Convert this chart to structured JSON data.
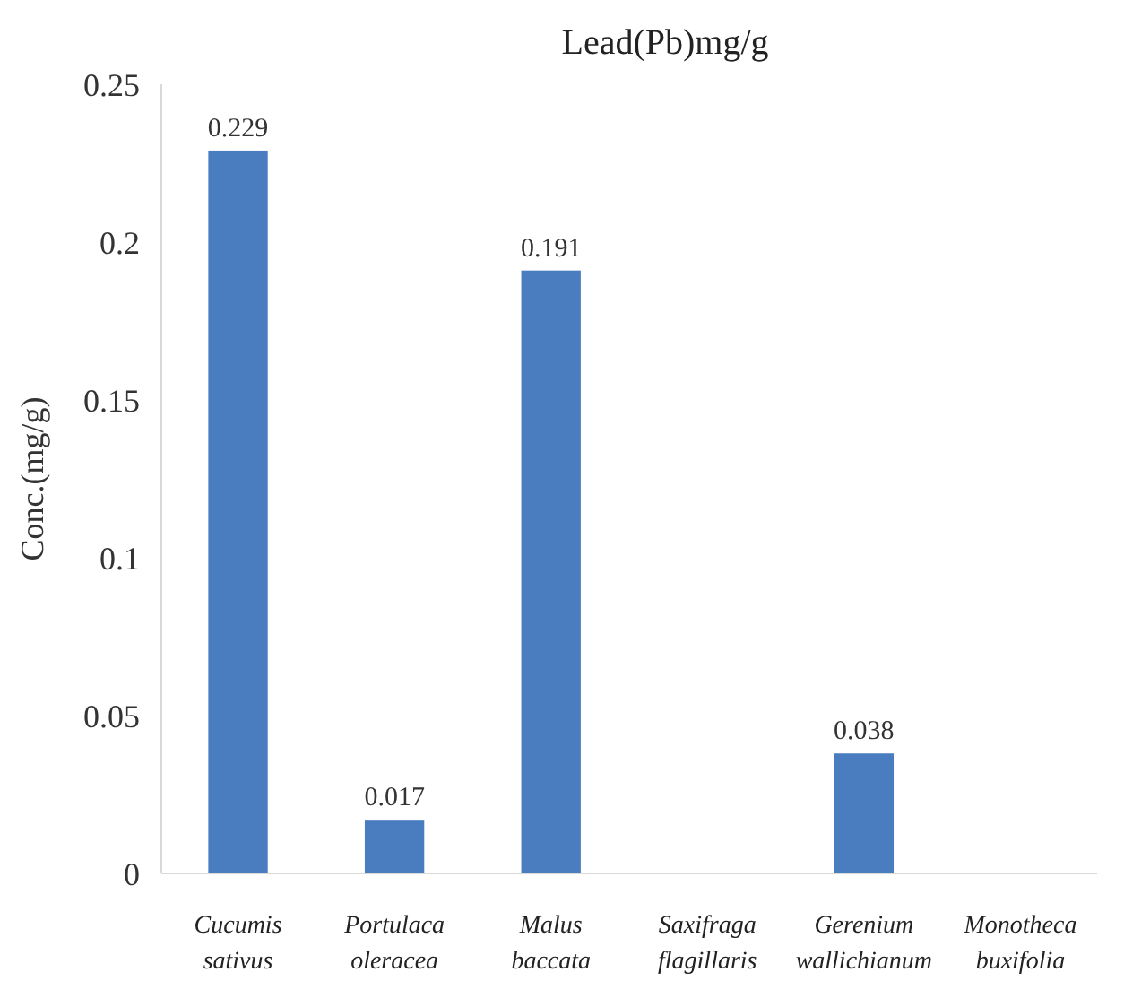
{
  "chart_data": {
    "type": "bar",
    "title": "Lead(Pb)mg/g",
    "ylabel": "Conc.(mg/g)",
    "categories": [
      "Cucumis sativus",
      "Portulaca oleracea",
      "Malus baccata",
      "Saxifraga flagillaris",
      "Gerenium wallichianum",
      "Monotheca buxifolia"
    ],
    "values": [
      0.229,
      0.017,
      0.191,
      0,
      0.038,
      0
    ],
    "value_labels": [
      "0.229",
      "0.017",
      "0.191",
      null,
      "0.038",
      null
    ],
    "color": "#4a7dc0",
    "ylim": [
      0,
      0.25
    ],
    "yticks": [
      0,
      0.05,
      {
        "value": 0.1,
        "label": "0.1"
      },
      0.15,
      {
        "value": 0.2,
        "label": "0.2"
      },
      0.25
    ],
    "grid": false
  }
}
